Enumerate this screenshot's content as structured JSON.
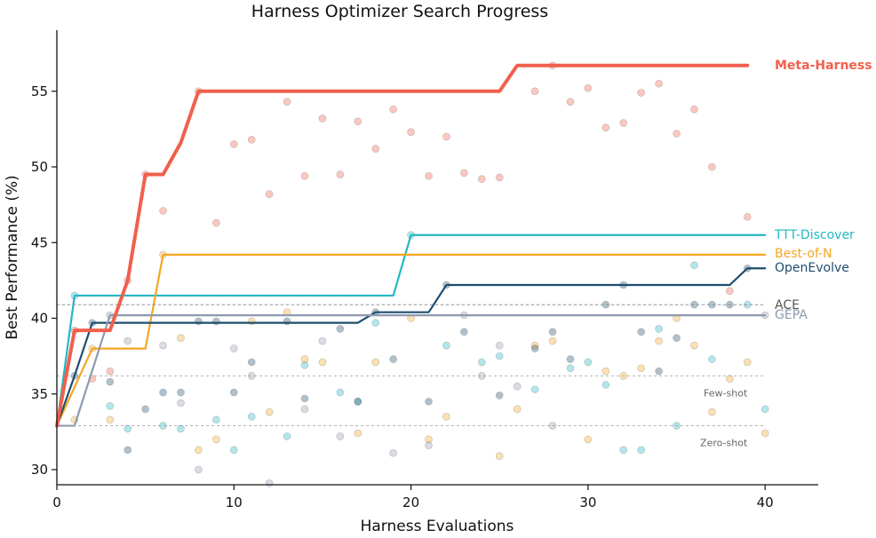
{
  "chart_data": {
    "type": "line",
    "title": "Harness Optimizer Search Progress",
    "xlabel": "Harness Evaluations",
    "ylabel": "Best Performance (%)",
    "xlim": [
      0,
      43
    ],
    "ylim": [
      29,
      59
    ],
    "xticks": [
      0,
      10,
      20,
      30,
      40
    ],
    "yticks": [
      30,
      35,
      40,
      45,
      50,
      55
    ],
    "grid": false,
    "reference_lines": [
      {
        "name": "Zero-shot",
        "y": 32.9
      },
      {
        "name": "Few-shot",
        "y": 36.2
      }
    ],
    "series": [
      {
        "name": "Meta-Harness",
        "color": "#f0604d",
        "bold": true,
        "x": [
          0,
          1,
          2,
          3,
          4,
          5,
          6,
          7,
          8,
          25,
          26,
          39
        ],
        "y": [
          32.9,
          39.2,
          39.2,
          39.2,
          42.5,
          49.5,
          49.5,
          51.6,
          55.0,
          55.0,
          56.7,
          56.7
        ],
        "scatter_x": [
          1,
          2,
          3,
          4,
          5,
          6,
          8,
          9,
          10,
          11,
          12,
          13,
          14,
          15,
          16,
          17,
          18,
          19,
          20,
          21,
          22,
          23,
          24,
          25,
          27,
          28,
          29,
          30,
          31,
          32,
          33,
          34,
          35,
          36,
          37,
          38,
          39
        ],
        "scatter_y": [
          39.2,
          36.0,
          36.5,
          42.5,
          49.5,
          47.1,
          55.0,
          46.3,
          51.5,
          51.8,
          48.2,
          54.3,
          49.4,
          53.2,
          49.5,
          53.0,
          51.2,
          53.8,
          52.3,
          49.4,
          52.0,
          49.6,
          49.2,
          49.3,
          55.0,
          56.7,
          54.3,
          55.2,
          52.6,
          52.9,
          54.9,
          55.5,
          52.2,
          53.8,
          50.0,
          41.8,
          46.7
        ]
      },
      {
        "name": "TTT-Discover",
        "color": "#22b8c2",
        "x": [
          0,
          1,
          19,
          20,
          40
        ],
        "y": [
          32.9,
          41.5,
          41.5,
          45.5,
          45.5
        ],
        "scatter_x": [
          1,
          3,
          4,
          6,
          7,
          9,
          10,
          11,
          13,
          14,
          16,
          17,
          18,
          20,
          22,
          24,
          25,
          27,
          29,
          30,
          31,
          32,
          33,
          34,
          35,
          36,
          37,
          39,
          40
        ],
        "scatter_y": [
          41.5,
          34.2,
          32.7,
          32.9,
          32.7,
          33.3,
          31.3,
          33.5,
          32.2,
          36.9,
          35.1,
          34.5,
          39.7,
          45.5,
          38.2,
          37.1,
          37.5,
          35.3,
          36.7,
          37.1,
          35.6,
          31.3,
          31.3,
          39.3,
          32.9,
          43.5,
          37.3,
          40.9,
          34.0
        ]
      },
      {
        "name": "Best-of-N",
        "color": "#f5a623",
        "x": [
          0,
          2,
          5,
          6,
          40
        ],
        "y": [
          32.9,
          38.0,
          38.0,
          44.2,
          44.2
        ],
        "scatter_x": [
          1,
          2,
          3,
          6,
          7,
          8,
          9,
          11,
          12,
          13,
          14,
          15,
          17,
          18,
          20,
          21,
          22,
          25,
          26,
          27,
          28,
          30,
          31,
          32,
          33,
          34,
          35,
          36,
          37,
          38,
          39,
          40
        ],
        "scatter_y": [
          33.3,
          38.0,
          33.3,
          44.2,
          38.7,
          31.3,
          32.0,
          39.8,
          33.8,
          40.4,
          37.3,
          37.1,
          32.4,
          37.1,
          40.0,
          32.0,
          33.5,
          30.9,
          34.0,
          38.2,
          38.5,
          32.0,
          36.5,
          36.2,
          36.7,
          38.5,
          40.0,
          38.2,
          33.8,
          36.0,
          37.1,
          32.4
        ]
      },
      {
        "name": "OpenEvolve",
        "color": "#1d4e6e",
        "x": [
          0,
          1,
          2,
          17,
          18,
          21,
          22,
          38,
          39,
          40
        ],
        "y": [
          32.9,
          36.2,
          39.7,
          39.7,
          40.4,
          40.4,
          42.2,
          42.2,
          43.3,
          43.3
        ],
        "scatter_x": [
          1,
          2,
          3,
          4,
          5,
          6,
          7,
          8,
          9,
          10,
          11,
          13,
          14,
          16,
          17,
          18,
          19,
          21,
          22,
          23,
          25,
          27,
          28,
          29,
          31,
          32,
          33,
          34,
          35,
          36,
          37,
          38,
          39
        ],
        "scatter_y": [
          36.2,
          39.7,
          35.8,
          31.3,
          34.0,
          35.1,
          35.1,
          39.8,
          39.8,
          35.1,
          37.1,
          39.8,
          34.7,
          39.3,
          34.5,
          40.4,
          37.3,
          34.5,
          42.2,
          39.1,
          34.9,
          38.0,
          39.1,
          37.3,
          40.9,
          42.2,
          39.1,
          36.5,
          38.7,
          40.9,
          40.9,
          40.9,
          43.3
        ]
      },
      {
        "name": "ACE",
        "color": "#888888",
        "dashed": true,
        "x": [
          0,
          40
        ],
        "y": [
          40.9,
          40.9
        ]
      },
      {
        "name": "GEPA",
        "color": "#8e9aaf",
        "x": [
          0,
          1,
          3,
          40
        ],
        "y": [
          32.9,
          32.9,
          40.2,
          40.2
        ],
        "scatter_x": [
          3,
          4,
          6,
          7,
          8,
          10,
          11,
          12,
          14,
          15,
          16,
          19,
          21,
          23,
          24,
          25,
          26,
          28,
          40
        ],
        "scatter_y": [
          40.2,
          38.5,
          38.2,
          34.4,
          30.0,
          38.0,
          36.2,
          29.1,
          34.0,
          38.5,
          32.2,
          31.1,
          31.6,
          40.2,
          36.2,
          38.2,
          35.5,
          32.9,
          40.2
        ]
      }
    ]
  }
}
